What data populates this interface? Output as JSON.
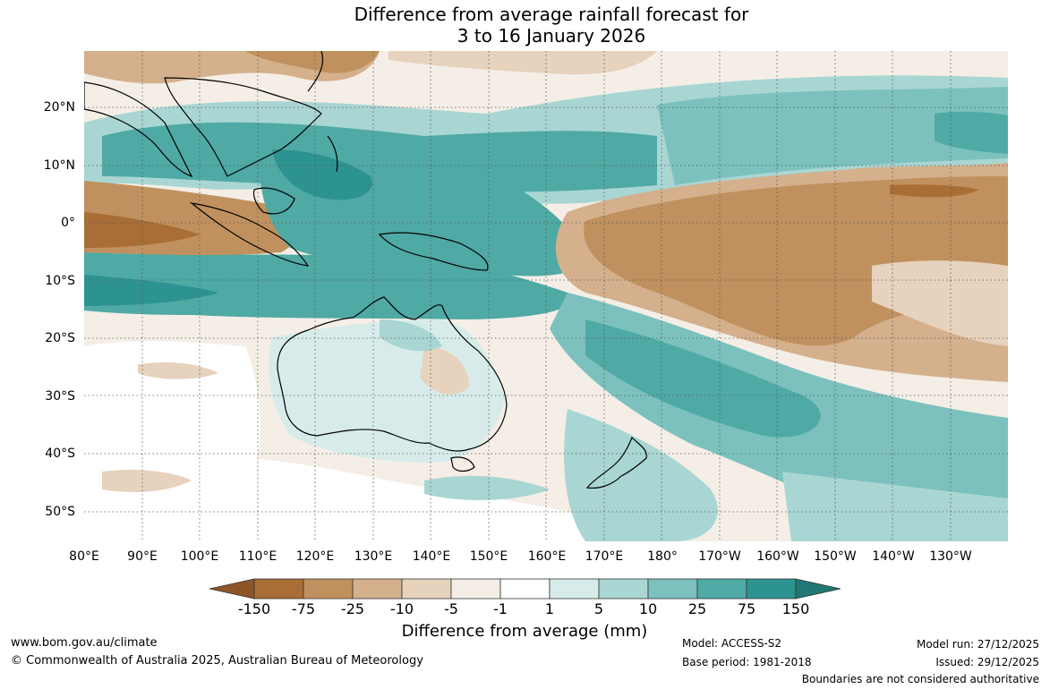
{
  "title": {
    "line1": "Difference from average rainfall forecast for",
    "line2": "3 to 16 January 2026"
  },
  "map": {
    "latitude_labels": [
      "20°N",
      "10°N",
      "0°",
      "10°S",
      "20°S",
      "30°S",
      "40°S",
      "50°S"
    ],
    "longitude_labels": [
      "80°E",
      "90°E",
      "100°E",
      "110°E",
      "120°E",
      "130°E",
      "140°E",
      "150°E",
      "160°E",
      "170°E",
      "180°",
      "170°W",
      "160°W",
      "150°W",
      "140°W",
      "130°W"
    ]
  },
  "legend": {
    "tick_labels": [
      "-150",
      "-75",
      "-25",
      "-10",
      "-5",
      "-1",
      "1",
      "5",
      "10",
      "25",
      "75",
      "150"
    ],
    "colors": [
      "#a86e36",
      "#c0915e",
      "#d4b08c",
      "#e6d2bd",
      "#f4eee6",
      "#ffffff",
      "#d7ecea",
      "#a9d6d3",
      "#7cc1bd",
      "#4fa9a5",
      "#2d9390"
    ],
    "end_colors": {
      "low": "#8c5628",
      "high": "#217773"
    },
    "title": "Difference from average (mm)"
  },
  "footer": {
    "website": "www.bom.gov.au/climate",
    "copyright": "© Commonwealth of Australia 2025, Australian Bureau of Meteorology",
    "model": "Model: ACCESS-S2",
    "base_period": "Base period: 1981-2018",
    "model_run": "Model run: 27/12/2025",
    "issued": "Issued: 29/12/2025",
    "disclaimer": "Boundaries are not considered authoritative"
  }
}
